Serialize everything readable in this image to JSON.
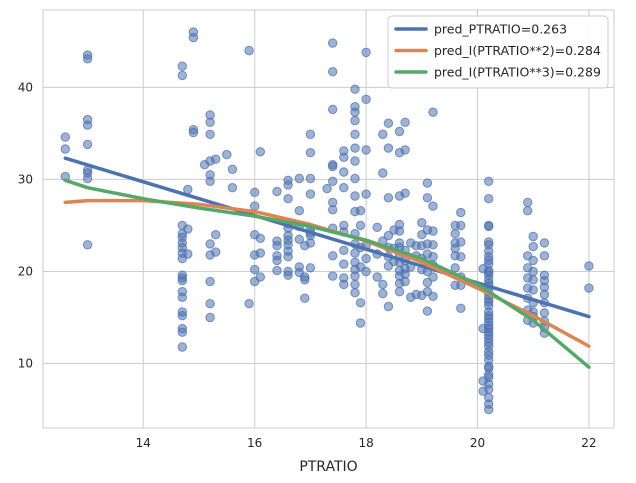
{
  "chart_data": {
    "type": "scatter",
    "title": "",
    "xlabel": "PTRATIO",
    "ylabel": "",
    "xlim": [
      12.2,
      22.45
    ],
    "ylim": [
      3.0,
      48.4
    ],
    "x_ticks": [
      14,
      16,
      18,
      20,
      22
    ],
    "y_ticks": [
      10,
      20,
      30,
      40
    ],
    "grid": true,
    "legend_position": "top-right",
    "colors": {
      "scatter": "#4c72b0",
      "linear": "#4c72b0",
      "quadratic": "#dd8452",
      "cubic": "#55a868",
      "grid": "#cccccc",
      "background": "#ffffff",
      "frame": "#cccccc"
    },
    "scatter": [
      [
        12.6,
        34.6
      ],
      [
        12.6,
        33.3
      ],
      [
        12.6,
        30.3
      ],
      [
        13.0,
        43.5
      ],
      [
        13.0,
        43.1
      ],
      [
        13.0,
        36.5
      ],
      [
        13.0,
        35.9
      ],
      [
        13.0,
        33.8
      ],
      [
        13.0,
        31.0
      ],
      [
        13.0,
        30.7
      ],
      [
        13.0,
        30.1
      ],
      [
        13.0,
        22.9
      ],
      [
        14.7,
        42.3
      ],
      [
        14.7,
        41.3
      ],
      [
        14.7,
        25.0
      ],
      [
        14.7,
        24.1
      ],
      [
        14.7,
        23.7
      ],
      [
        14.7,
        23.1
      ],
      [
        14.7,
        22.6
      ],
      [
        14.7,
        22.0
      ],
      [
        14.7,
        21.4
      ],
      [
        14.7,
        19.6
      ],
      [
        14.7,
        19.3
      ],
      [
        14.7,
        19.0
      ],
      [
        14.7,
        17.8
      ],
      [
        14.7,
        17.2
      ],
      [
        14.7,
        15.6
      ],
      [
        14.7,
        15.2
      ],
      [
        14.7,
        13.8
      ],
      [
        14.7,
        13.4
      ],
      [
        14.7,
        11.8
      ],
      [
        14.8,
        28.9
      ],
      [
        14.8,
        24.6
      ],
      [
        14.8,
        21.9
      ],
      [
        14.9,
        46.0
      ],
      [
        14.9,
        45.4
      ],
      [
        14.9,
        35.4
      ],
      [
        14.9,
        35.1
      ],
      [
        15.1,
        31.6
      ],
      [
        15.2,
        37.0
      ],
      [
        15.2,
        36.2
      ],
      [
        15.2,
        34.9
      ],
      [
        15.2,
        32.0
      ],
      [
        15.2,
        30.5
      ],
      [
        15.2,
        29.8
      ],
      [
        15.2,
        23.0
      ],
      [
        15.2,
        21.8
      ],
      [
        15.2,
        18.9
      ],
      [
        15.2,
        16.5
      ],
      [
        15.2,
        15.0
      ],
      [
        15.3,
        32.2
      ],
      [
        15.3,
        24.0
      ],
      [
        15.3,
        22.1
      ],
      [
        15.5,
        32.7
      ],
      [
        15.6,
        31.1
      ],
      [
        15.6,
        29.1
      ],
      [
        15.9,
        44.0
      ],
      [
        15.9,
        16.5
      ],
      [
        16.0,
        28.6
      ],
      [
        16.0,
        27.1
      ],
      [
        16.0,
        24.0
      ],
      [
        16.0,
        21.8
      ],
      [
        16.0,
        20.2
      ],
      [
        16.0,
        18.9
      ],
      [
        16.1,
        33.0
      ],
      [
        16.1,
        23.6
      ],
      [
        16.1,
        22.0
      ],
      [
        16.1,
        19.4
      ],
      [
        16.4,
        28.7
      ],
      [
        16.4,
        23.3
      ],
      [
        16.4,
        22.8
      ],
      [
        16.4,
        21.7
      ],
      [
        16.4,
        21.2
      ],
      [
        16.4,
        20.1
      ],
      [
        16.6,
        29.9
      ],
      [
        16.6,
        29.4
      ],
      [
        16.6,
        27.9
      ],
      [
        16.6,
        25.2
      ],
      [
        16.6,
        24.7
      ],
      [
        16.6,
        23.9
      ],
      [
        16.6,
        23.4
      ],
      [
        16.6,
        22.9
      ],
      [
        16.6,
        22.2
      ],
      [
        16.6,
        21.6
      ],
      [
        16.6,
        20.0
      ],
      [
        16.6,
        19.6
      ],
      [
        16.8,
        30.1
      ],
      [
        16.8,
        26.6
      ],
      [
        16.8,
        24.9
      ],
      [
        16.8,
        23.5
      ],
      [
        16.8,
        20.5
      ],
      [
        16.8,
        19.9
      ],
      [
        16.9,
        22.8
      ],
      [
        16.9,
        19.4
      ],
      [
        16.9,
        19.1
      ],
      [
        16.9,
        17.1
      ],
      [
        17.0,
        34.9
      ],
      [
        17.0,
        32.9
      ],
      [
        17.0,
        30.1
      ],
      [
        17.0,
        28.4
      ],
      [
        17.0,
        24.6
      ],
      [
        17.0,
        24.2
      ],
      [
        17.0,
        23.9
      ],
      [
        17.0,
        23.1
      ],
      [
        17.0,
        20.4
      ],
      [
        17.3,
        29.0
      ],
      [
        17.4,
        44.8
      ],
      [
        17.4,
        41.7
      ],
      [
        17.4,
        37.6
      ],
      [
        17.4,
        31.6
      ],
      [
        17.4,
        31.4
      ],
      [
        17.4,
        29.8
      ],
      [
        17.4,
        27.5
      ],
      [
        17.4,
        26.7
      ],
      [
        17.4,
        24.7
      ],
      [
        17.4,
        21.7
      ],
      [
        17.4,
        19.5
      ],
      [
        17.6,
        33.1
      ],
      [
        17.6,
        32.4
      ],
      [
        17.6,
        30.8
      ],
      [
        17.6,
        29.1
      ],
      [
        17.6,
        25.0
      ],
      [
        17.6,
        24.3
      ],
      [
        17.6,
        22.3
      ],
      [
        17.6,
        20.8
      ],
      [
        17.6,
        19.3
      ],
      [
        17.6,
        18.6
      ],
      [
        17.8,
        39.8
      ],
      [
        17.8,
        37.9
      ],
      [
        17.8,
        37.3
      ],
      [
        17.8,
        36.4
      ],
      [
        17.8,
        34.9
      ],
      [
        17.8,
        33.4
      ],
      [
        17.8,
        32.0
      ],
      [
        17.8,
        30.1
      ],
      [
        17.8,
        28.2
      ],
      [
        17.8,
        26.5
      ],
      [
        17.8,
        24.1
      ],
      [
        17.8,
        23.0
      ],
      [
        17.8,
        22.0
      ],
      [
        17.8,
        21.0
      ],
      [
        17.8,
        20.2
      ],
      [
        17.8,
        19.5
      ],
      [
        17.8,
        18.6
      ],
      [
        17.8,
        17.7
      ],
      [
        17.9,
        26.6
      ],
      [
        17.9,
        25.0
      ],
      [
        17.9,
        22.6
      ],
      [
        17.9,
        20.5
      ],
      [
        17.9,
        16.6
      ],
      [
        17.9,
        14.4
      ],
      [
        18.0,
        43.8
      ],
      [
        18.0,
        38.7
      ],
      [
        18.0,
        33.2
      ],
      [
        18.0,
        28.4
      ],
      [
        18.0,
        22.8
      ],
      [
        18.0,
        21.4
      ],
      [
        18.0,
        20.0
      ],
      [
        18.2,
        24.8
      ],
      [
        18.2,
        21.9
      ],
      [
        18.2,
        19.4
      ],
      [
        18.3,
        34.9
      ],
      [
        18.3,
        30.7
      ],
      [
        18.3,
        23.3
      ],
      [
        18.3,
        18.6
      ],
      [
        18.3,
        17.6
      ],
      [
        18.4,
        36.1
      ],
      [
        18.4,
        33.4
      ],
      [
        18.4,
        28.0
      ],
      [
        18.4,
        23.9
      ],
      [
        18.4,
        22.6
      ],
      [
        18.4,
        21.6
      ],
      [
        18.4,
        20.6
      ],
      [
        18.4,
        16.2
      ],
      [
        18.5,
        24.5
      ],
      [
        18.5,
        22.5
      ],
      [
        18.5,
        21.1
      ],
      [
        18.6,
        35.2
      ],
      [
        18.6,
        32.9
      ],
      [
        18.6,
        28.2
      ],
      [
        18.6,
        25.1
      ],
      [
        18.6,
        24.4
      ],
      [
        18.6,
        23.1
      ],
      [
        18.6,
        22.6
      ],
      [
        18.6,
        21.9
      ],
      [
        18.6,
        21.0
      ],
      [
        18.6,
        20.1
      ],
      [
        18.6,
        19.5
      ],
      [
        18.6,
        18.7
      ],
      [
        18.6,
        17.8
      ],
      [
        18.7,
        36.2
      ],
      [
        18.7,
        33.2
      ],
      [
        18.7,
        28.5
      ],
      [
        18.7,
        22.3
      ],
      [
        18.7,
        21.2
      ],
      [
        18.7,
        20.3
      ],
      [
        18.7,
        19.7
      ],
      [
        18.7,
        18.9
      ],
      [
        18.8,
        23.1
      ],
      [
        18.8,
        20.5
      ],
      [
        18.8,
        17.2
      ],
      [
        18.9,
        22.8
      ],
      [
        18.9,
        21.7
      ],
      [
        18.9,
        17.5
      ],
      [
        19.0,
        25.3
      ],
      [
        19.0,
        24.0
      ],
      [
        19.0,
        22.8
      ],
      [
        19.0,
        21.4
      ],
      [
        19.0,
        20.2
      ],
      [
        19.0,
        17.4
      ],
      [
        19.1,
        29.6
      ],
      [
        19.1,
        28.0
      ],
      [
        19.1,
        24.5
      ],
      [
        19.1,
        23.0
      ],
      [
        19.1,
        21.9
      ],
      [
        19.1,
        20.0
      ],
      [
        19.1,
        18.8
      ],
      [
        19.1,
        17.8
      ],
      [
        19.1,
        15.7
      ],
      [
        19.2,
        37.3
      ],
      [
        19.2,
        27.1
      ],
      [
        19.2,
        24.4
      ],
      [
        19.2,
        22.9
      ],
      [
        19.2,
        21.6
      ],
      [
        19.2,
        20.7
      ],
      [
        19.2,
        19.4
      ],
      [
        19.2,
        17.3
      ],
      [
        19.6,
        25.0
      ],
      [
        19.6,
        24.1
      ],
      [
        19.6,
        23.1
      ],
      [
        19.6,
        22.5
      ],
      [
        19.6,
        21.7
      ],
      [
        19.6,
        20.4
      ],
      [
        19.6,
        18.5
      ],
      [
        19.7,
        26.4
      ],
      [
        19.7,
        25.0
      ],
      [
        19.7,
        23.2
      ],
      [
        19.7,
        21.6
      ],
      [
        19.7,
        19.4
      ],
      [
        19.7,
        18.5
      ],
      [
        19.7,
        16.0
      ],
      [
        20.1,
        20.3
      ],
      [
        20.1,
        13.8
      ],
      [
        20.2,
        29.8
      ],
      [
        20.2,
        27.9
      ],
      [
        20.2,
        25.0
      ],
      [
        20.2,
        24.9
      ],
      [
        20.2,
        23.2
      ],
      [
        20.2,
        22.9
      ],
      [
        20.2,
        22.2
      ],
      [
        20.2,
        21.6
      ],
      [
        20.2,
        21.2
      ],
      [
        20.2,
        20.8
      ],
      [
        20.2,
        20.1
      ],
      [
        20.2,
        19.9
      ],
      [
        20.2,
        19.6
      ],
      [
        20.2,
        19.1
      ],
      [
        20.2,
        18.7
      ],
      [
        20.2,
        18.4
      ],
      [
        20.2,
        17.8
      ],
      [
        20.2,
        17.4
      ],
      [
        20.2,
        17.0
      ],
      [
        20.2,
        16.7
      ],
      [
        20.2,
        16.3
      ],
      [
        20.2,
        15.6
      ],
      [
        20.2,
        15.2
      ],
      [
        20.2,
        14.9
      ],
      [
        20.2,
        14.5
      ],
      [
        20.2,
        14.1
      ],
      [
        20.2,
        13.8
      ],
      [
        20.2,
        13.4
      ],
      [
        20.2,
        13.1
      ],
      [
        20.2,
        12.7
      ],
      [
        20.2,
        12.3
      ],
      [
        20.2,
        11.9
      ],
      [
        20.2,
        11.3
      ],
      [
        20.2,
        10.9
      ],
      [
        20.2,
        10.4
      ],
      [
        20.2,
        9.7
      ],
      [
        20.2,
        9.5
      ],
      [
        20.2,
        8.8
      ],
      [
        20.2,
        8.5
      ],
      [
        20.2,
        7.8
      ],
      [
        20.2,
        7.2
      ],
      [
        20.2,
        6.3
      ],
      [
        20.2,
        5.6
      ],
      [
        20.2,
        5.0
      ],
      [
        20.1,
        8.1
      ],
      [
        20.1,
        7.0
      ],
      [
        20.9,
        27.5
      ],
      [
        20.9,
        26.6
      ],
      [
        20.9,
        21.7
      ],
      [
        20.9,
        20.4
      ],
      [
        20.9,
        19.3
      ],
      [
        20.9,
        18.2
      ],
      [
        20.9,
        17.1
      ],
      [
        20.9,
        15.8
      ],
      [
        20.9,
        14.7
      ],
      [
        21.0,
        23.8
      ],
      [
        21.0,
        22.7
      ],
      [
        21.0,
        21.2
      ],
      [
        21.0,
        20.0
      ],
      [
        21.0,
        19.1
      ],
      [
        21.0,
        18.0
      ],
      [
        21.0,
        16.6
      ],
      [
        21.0,
        15.6
      ],
      [
        21.0,
        15.1
      ],
      [
        21.0,
        14.4
      ],
      [
        21.2,
        23.1
      ],
      [
        21.2,
        21.7
      ],
      [
        21.2,
        19.6
      ],
      [
        21.2,
        19.0
      ],
      [
        21.2,
        18.3
      ],
      [
        21.2,
        17.5
      ],
      [
        21.2,
        16.6
      ],
      [
        21.2,
        15.5
      ],
      [
        21.2,
        14.6
      ],
      [
        21.2,
        13.9
      ],
      [
        21.2,
        13.3
      ],
      [
        22.0,
        20.6
      ],
      [
        22.0,
        18.2
      ]
    ],
    "series": [
      {
        "name": "pred_PTRATIO=0.263",
        "x": [
          12.6,
          22.0
        ],
        "y": [
          32.3,
          15.1
        ]
      },
      {
        "name": "pred_I(PTRATIO**2)=0.284",
        "x": [
          12.6,
          13.0,
          14.0,
          15.0,
          16.0,
          17.0,
          18.0,
          19.0,
          20.0,
          21.0,
          22.0
        ],
        "y": [
          27.5,
          27.7,
          27.7,
          27.3,
          26.5,
          25.1,
          23.3,
          21.0,
          18.2,
          15.2,
          11.9
        ]
      },
      {
        "name": "pred_I(PTRATIO**3)=0.289",
        "x": [
          12.6,
          13.0,
          14.0,
          15.0,
          16.0,
          17.0,
          18.0,
          19.0,
          20.0,
          21.0,
          22.0
        ],
        "y": [
          29.9,
          29.1,
          27.9,
          26.9,
          26.0,
          24.9,
          23.4,
          21.4,
          18.6,
          14.7,
          9.6
        ]
      }
    ]
  }
}
